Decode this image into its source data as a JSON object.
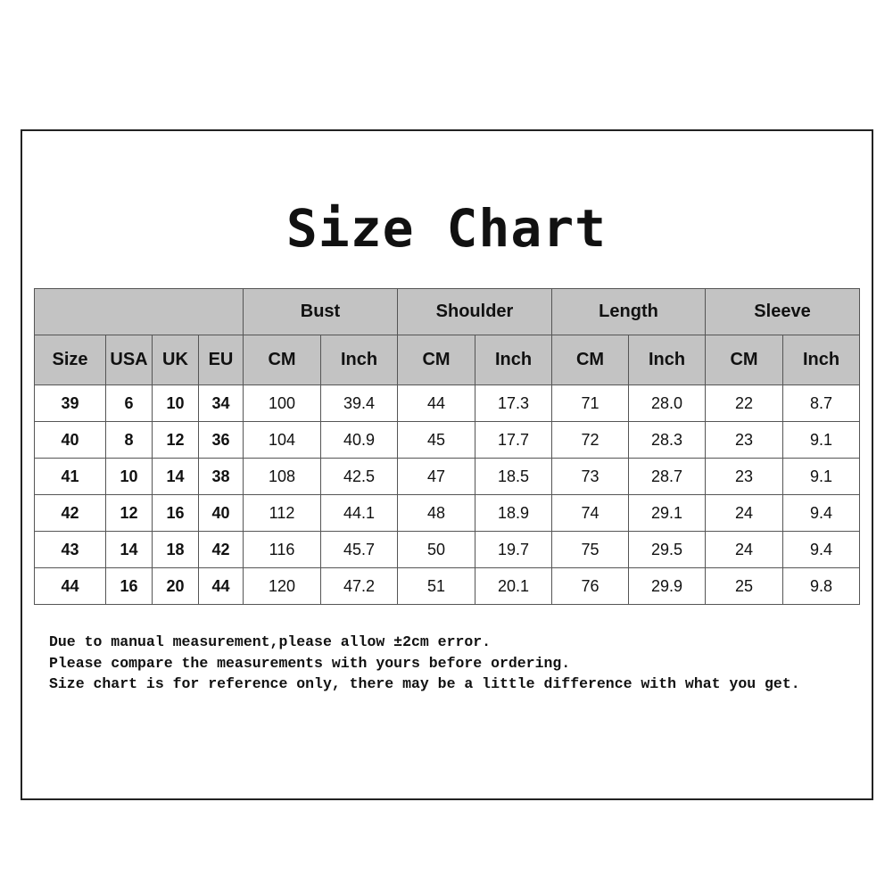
{
  "title": "Size Chart",
  "table": {
    "groups": [
      "Bust",
      "Shoulder",
      "Length",
      "Sleeve"
    ],
    "size_headers": [
      "Size",
      "USA",
      "UK",
      "EU"
    ],
    "unit_headers": [
      "CM",
      "Inch"
    ],
    "rows": [
      [
        "39",
        "6",
        "10",
        "34",
        "100",
        "39.4",
        "44",
        "17.3",
        "71",
        "28.0",
        "22",
        "8.7"
      ],
      [
        "40",
        "8",
        "12",
        "36",
        "104",
        "40.9",
        "45",
        "17.7",
        "72",
        "28.3",
        "23",
        "9.1"
      ],
      [
        "41",
        "10",
        "14",
        "38",
        "108",
        "42.5",
        "47",
        "18.5",
        "73",
        "28.7",
        "23",
        "9.1"
      ],
      [
        "42",
        "12",
        "16",
        "40",
        "112",
        "44.1",
        "48",
        "18.9",
        "74",
        "29.1",
        "24",
        "9.4"
      ],
      [
        "43",
        "14",
        "18",
        "42",
        "116",
        "45.7",
        "50",
        "19.7",
        "75",
        "29.5",
        "24",
        "9.4"
      ],
      [
        "44",
        "16",
        "20",
        "44",
        "120",
        "47.2",
        "51",
        "20.1",
        "76",
        "29.9",
        "25",
        "9.8"
      ]
    ]
  },
  "notes": [
    "Due to manual measurement,please allow ±2cm error.",
    "Please compare the measurements with yours before ordering.",
    "Size chart is for reference only, there may be a little difference with what you get."
  ]
}
